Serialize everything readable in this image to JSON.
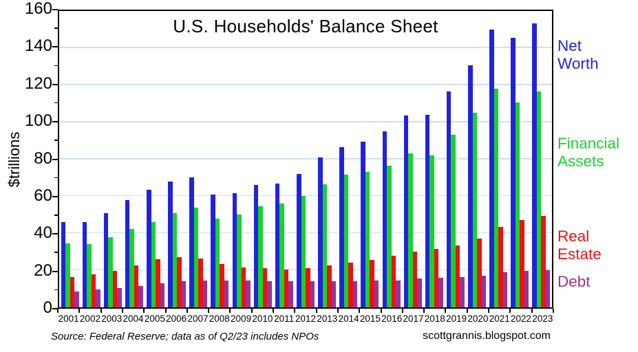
{
  "chart_data": {
    "type": "bar",
    "title": "U.S. Households' Balance Sheet",
    "ylabel": "$trillions",
    "ylim": [
      0,
      160
    ],
    "y_ticks": [
      0,
      20,
      40,
      60,
      80,
      100,
      120,
      140,
      160
    ],
    "y_minor_tick_step": 10,
    "grid": "horizontal light-blue gridlines at major ticks",
    "legend_position": "right outside plot",
    "categories": [
      "2001",
      "2002",
      "2003",
      "2004",
      "2005",
      "2006",
      "2007",
      "2008",
      "2009",
      "2010",
      "2011",
      "2012",
      "2013",
      "2014",
      "2015",
      "2016",
      "2017",
      "2018",
      "2019",
      "2020",
      "2021",
      "2022",
      "2023"
    ],
    "series": [
      {
        "name": "Net Worth",
        "legend_lines": [
          "Net",
          "Worth"
        ],
        "color": "#2222dd",
        "values": [
          46,
          46,
          51,
          58,
          63.5,
          68,
          70,
          61,
          61.5,
          66,
          67,
          72,
          81,
          86.5,
          89.5,
          95,
          103.5,
          104,
          116.5,
          130.5,
          150,
          145.5,
          153.5
        ]
      },
      {
        "name": "Financial Assets",
        "legend_lines": [
          "Financial",
          "Assets"
        ],
        "color": "#16d42a",
        "values": [
          34.5,
          34,
          38,
          42.5,
          46,
          51,
          54,
          48,
          50,
          54.5,
          56,
          60,
          66.5,
          71.5,
          73,
          76.5,
          83,
          82,
          93,
          105,
          118,
          110.5,
          116.5
        ]
      },
      {
        "name": "Real Estate",
        "legend_lines": [
          "Real",
          "Estate"
        ],
        "color": "#ee1111",
        "values": [
          16.5,
          18,
          19.5,
          22.5,
          26,
          27,
          26.5,
          23.5,
          21.5,
          21,
          20.5,
          21,
          22.5,
          24,
          25.5,
          28,
          30,
          31.5,
          33.5,
          37,
          43.5,
          47,
          49.5
        ]
      },
      {
        "name": "Debt",
        "legend_lines": [
          "Debt"
        ],
        "color": "#993399",
        "values": [
          8.5,
          9.5,
          10.5,
          11.5,
          13,
          14,
          14.5,
          14.5,
          14.5,
          14,
          14,
          14,
          14,
          14,
          14.5,
          14.5,
          15.5,
          16,
          16.5,
          17,
          19,
          19.5,
          20
        ]
      }
    ]
  },
  "footer": {
    "source": "Source: Federal Reserve; data as of Q2/23 includes NPOs",
    "site": "scottgrannis.blogspot.com"
  },
  "colors": {
    "gridline": "#cddff3",
    "axis": "#000000",
    "background": "#ffffff"
  }
}
